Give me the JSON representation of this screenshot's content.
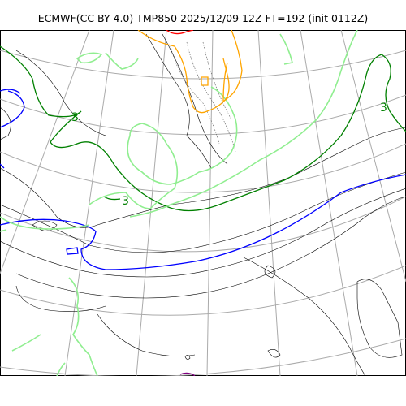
{
  "title": "ECMWF(CC BY 4.0) TMP850 2025/12/09 12Z FT=192 (init 0112Z)",
  "contour_labels": [
    "3",
    "3",
    "3"
  ],
  "colors": {
    "coastline": "#000000",
    "graticule": "#aaaaaa",
    "isotherm_0C": "#0000ff",
    "isotherm_3C": "#008000",
    "isotherm_6C": "#90ee90",
    "isotherm_9C": "#ffa500",
    "isotherm_12C": "#ff0000",
    "isotherm_neg": "#800080"
  }
}
